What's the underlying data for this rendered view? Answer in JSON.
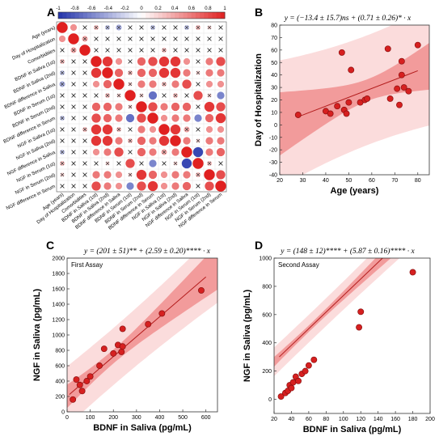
{
  "chart_data": [
    {
      "panel": "A",
      "type": "heatmap",
      "variables": [
        "Age (years)",
        "Day of Hospitalization",
        "Comorbidities",
        "BDNF in Saliva (1st)",
        "BDNF in Saliva (2nd)",
        "BDNF difference in Saliva",
        "BDNF in Serum (1st)",
        "BDNF in Serum (2nd)",
        "BDNF difference in Serum",
        "NGF in Saliva (1st)",
        "NGF in Saliva (2nd)",
        "NGF difference in Saliva",
        "NGF in Serum (1st)",
        "NGF in Serum (2nd)",
        "NGF difference in Serum"
      ],
      "colorbar_ticks": [
        "-1",
        "-0.8",
        "-0.6",
        "-0.4",
        "-0.2",
        "0",
        "0.2",
        "0.4",
        "0.6",
        "0.8",
        "1"
      ],
      "colorbar_range": [
        -1,
        1
      ],
      "colors": {
        "negative": "#2233aa",
        "positive": "#e02020",
        "neutral": "#ffffff"
      },
      "matrix": [
        [
          1,
          0.5,
          0.1,
          0.3,
          -0.3,
          -0.4,
          0.1,
          0.1,
          -0.3,
          0.1,
          0.1,
          -0.3,
          0.3,
          0.2,
          -0.1
        ],
        [
          0.5,
          1,
          0.4,
          0.1,
          0.1,
          0.1,
          0.1,
          0.1,
          0.1,
          0.1,
          0.1,
          0.1,
          0.1,
          0.1,
          0.1
        ],
        [
          0.1,
          0.4,
          1,
          0.1,
          0.1,
          0.1,
          0.1,
          0.1,
          0.1,
          0.3,
          0.1,
          0.1,
          0.1,
          0.1,
          0.1
        ],
        [
          0.3,
          0.1,
          0.1,
          1,
          0.9,
          0.5,
          0.1,
          0.7,
          0.8,
          0.9,
          0.9,
          0.5,
          0.1,
          0.6,
          0.8
        ],
        [
          -0.3,
          0.1,
          0.1,
          0.9,
          1,
          0.7,
          0.3,
          0.7,
          0.7,
          0.9,
          0.9,
          0.6,
          0.2,
          0.6,
          0.6
        ],
        [
          -0.4,
          0.1,
          0.1,
          0.5,
          0.7,
          1,
          0.2,
          0.6,
          0.6,
          0.3,
          0.6,
          0.8,
          0.1,
          0.5,
          0.5
        ],
        [
          0.1,
          0.1,
          0.1,
          0.1,
          0.3,
          0.2,
          1,
          0.2,
          -0.7,
          0.1,
          0.3,
          0.1,
          0.8,
          0.2,
          -0.6
        ],
        [
          0.1,
          0.1,
          0.1,
          0.7,
          0.7,
          0.6,
          0.2,
          1,
          0.8,
          0.6,
          0.7,
          0.7,
          0.1,
          0.9,
          0.8
        ],
        [
          -0.3,
          0.1,
          0.1,
          0.8,
          0.7,
          0.6,
          -0.7,
          0.8,
          1,
          0.5,
          0.6,
          0.6,
          -0.6,
          0.7,
          0.9
        ],
        [
          0.1,
          0.1,
          0.3,
          0.9,
          0.9,
          0.3,
          0.1,
          0.6,
          0.5,
          1,
          0.9,
          0.4,
          0.1,
          0.5,
          0.5
        ],
        [
          0.1,
          0.1,
          0.1,
          0.9,
          0.9,
          0.6,
          0.3,
          0.7,
          0.6,
          0.9,
          1,
          0.6,
          0.2,
          0.6,
          0.6
        ],
        [
          -0.3,
          0.1,
          0.1,
          0.5,
          0.6,
          0.8,
          0.1,
          0.7,
          0.6,
          0.4,
          0.6,
          1,
          -0.9,
          0.6,
          0.7
        ],
        [
          0.3,
          0.1,
          0.1,
          0.1,
          0.2,
          0.1,
          0.8,
          0.1,
          -0.6,
          0.1,
          0.2,
          -0.9,
          1,
          0.3,
          0.1
        ],
        [
          0.2,
          0.1,
          0.1,
          0.6,
          0.6,
          0.5,
          0.2,
          0.9,
          0.7,
          0.5,
          0.6,
          0.6,
          0.3,
          1,
          0.8
        ],
        [
          -0.1,
          0.1,
          0.1,
          0.8,
          0.6,
          0.5,
          -0.6,
          0.8,
          0.9,
          0.5,
          0.6,
          0.7,
          0.1,
          0.8,
          1
        ]
      ]
    },
    {
      "panel": "B",
      "type": "scatter",
      "equation": "y = (−13.4 ± 15.7)ns + (0.71 ± 0.26)* · x",
      "xlabel": "Age (years)",
      "ylabel": "Day of Hospitalization",
      "xlim": [
        20,
        85
      ],
      "ylim": [
        -40,
        80
      ],
      "xticks": [
        20,
        30,
        40,
        50,
        60,
        70,
        80
      ],
      "yticks": [
        -40,
        -30,
        -20,
        -10,
        0,
        10,
        20,
        30,
        40,
        50,
        60,
        70,
        80
      ],
      "points": [
        [
          28,
          8
        ],
        [
          40,
          11
        ],
        [
          42,
          9
        ],
        [
          45,
          15
        ],
        [
          47,
          58
        ],
        [
          48,
          12
        ],
        [
          49,
          9
        ],
        [
          50,
          18
        ],
        [
          51,
          44
        ],
        [
          55,
          18
        ],
        [
          57,
          20
        ],
        [
          58,
          21
        ],
        [
          67,
          61
        ],
        [
          68,
          21
        ],
        [
          71,
          29
        ],
        [
          72,
          16
        ],
        [
          73,
          51
        ],
        [
          73,
          40
        ],
        [
          74,
          30
        ],
        [
          76,
          27
        ],
        [
          80,
          64
        ]
      ],
      "fit": {
        "intercept": -13.4,
        "slope": 0.71
      }
    },
    {
      "panel": "C",
      "type": "scatter",
      "inset_label": "First Assay",
      "equation": "y = (201 ± 51)** + (2.59 ± 0.20)**** · x",
      "xlabel": "BDNF in Saliva (pg/mL)",
      "ylabel": "NGF in Saliva (pg/mL)",
      "xlim": [
        0,
        650
      ],
      "ylim": [
        0,
        2000
      ],
      "xticks": [
        0,
        100,
        200,
        300,
        400,
        500,
        600
      ],
      "yticks": [
        0,
        200,
        400,
        600,
        800,
        1000,
        1200,
        1400,
        1600,
        1800,
        2000
      ],
      "points": [
        [
          25,
          160
        ],
        [
          40,
          420
        ],
        [
          55,
          350
        ],
        [
          65,
          270
        ],
        [
          85,
          400
        ],
        [
          100,
          460
        ],
        [
          140,
          600
        ],
        [
          160,
          820
        ],
        [
          200,
          760
        ],
        [
          220,
          870
        ],
        [
          235,
          780
        ],
        [
          240,
          1080
        ],
        [
          240,
          850
        ],
        [
          350,
          1140
        ],
        [
          410,
          1280
        ],
        [
          580,
          1580
        ]
      ],
      "fit": {
        "intercept": 201,
        "slope": 2.59
      }
    },
    {
      "panel": "D",
      "type": "scatter",
      "inset_label": "Second Assay",
      "equation": "y = (148 ± 12)**** + (5.87 ± 0.16)**** · x",
      "xlabel": "BDNF in Saliva (pg/mL)",
      "ylabel": "NGF in Saliva (pg/mL)",
      "xlim": [
        20,
        200
      ],
      "ylim": [
        -100,
        1000
      ],
      "xticks": [
        20,
        40,
        60,
        80,
        100,
        120,
        140,
        160,
        180,
        200
      ],
      "yticks": [
        0,
        200,
        400,
        600,
        800,
        1000
      ],
      "points": [
        [
          28,
          20
        ],
        [
          33,
          45
        ],
        [
          36,
          60
        ],
        [
          38,
          100
        ],
        [
          40,
          80
        ],
        [
          42,
          120
        ],
        [
          45,
          160
        ],
        [
          48,
          130
        ],
        [
          52,
          180
        ],
        [
          56,
          200
        ],
        [
          60,
          240
        ],
        [
          66,
          280
        ],
        [
          118,
          510
        ],
        [
          120,
          620
        ],
        [
          180,
          900
        ]
      ],
      "fit": {
        "intercept": 148,
        "slope": 5.87
      }
    }
  ]
}
